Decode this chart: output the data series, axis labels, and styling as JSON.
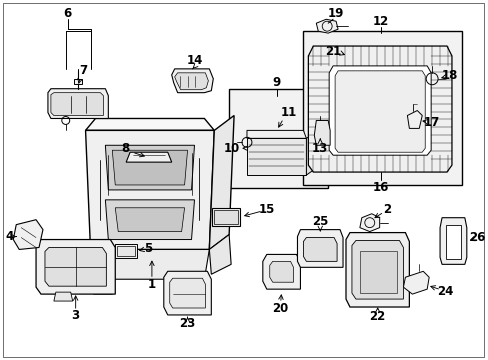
{
  "bg": "#ffffff",
  "lc": "#000000",
  "fig_w": 4.89,
  "fig_h": 3.6,
  "dpi": 100,
  "fs": 8.5,
  "fs_small": 7.5
}
